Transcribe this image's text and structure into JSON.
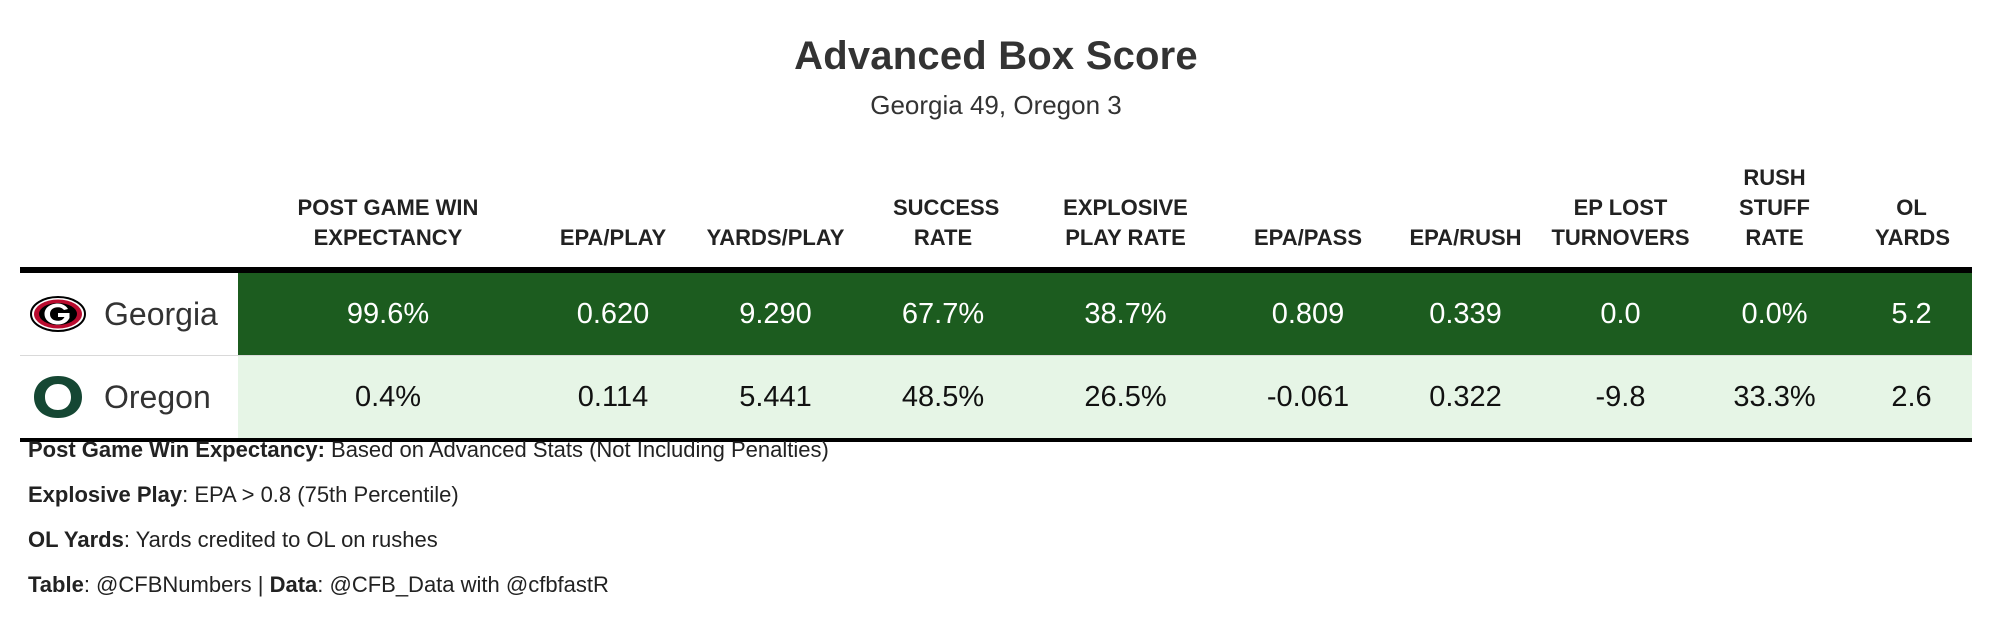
{
  "header": {
    "title": "Advanced Box Score",
    "subtitle": "Georgia 49, Oregon 3"
  },
  "chart_data": {
    "type": "table",
    "columns": [
      "POST GAME WIN EXPECTANCY",
      "EPA/PLAY",
      "YARDS/PLAY",
      "SUCCESS RATE",
      "EXPLOSIVE PLAY RATE",
      "EPA/PASS",
      "EPA/RUSH",
      "EP LOST TURNOVERS",
      "RUSH STUFF RATE",
      "OL YARDS"
    ],
    "rows": [
      {
        "team": "Georgia",
        "logo": "georgia-g-logo",
        "values": [
          "99.6%",
          "0.620",
          "9.290",
          "67.7%",
          "38.7%",
          "0.809",
          "0.339",
          "0.0",
          "0.0%",
          "5.2"
        ]
      },
      {
        "team": "Oregon",
        "logo": "oregon-o-logo",
        "values": [
          "0.4%",
          "0.114",
          "5.441",
          "48.5%",
          "26.5%",
          "-0.061",
          "0.322",
          "-9.8",
          "33.3%",
          "2.6"
        ]
      }
    ]
  },
  "notes": [
    {
      "term": "Post Game Win Expectancy:",
      "text": " Based on Advanced Stats (Not Including Penalties)"
    },
    {
      "term": "Explosive Play",
      "text": ": EPA > 0.8 (75th Percentile)"
    },
    {
      "term": "OL Yards",
      "text": ": Yards credited to OL on rushes"
    }
  ],
  "credits": {
    "table_label": "Table",
    "table_value": ": @CFBNumbers | ",
    "data_label": "Data",
    "data_value": ": @CFB_Data with @cfbfastR"
  },
  "colors": {
    "georgia_row": "#1c5c1f",
    "oregon_row": "#e6f5e6",
    "georgia_red": "#ba0c2f",
    "oregon_green": "#154733"
  }
}
